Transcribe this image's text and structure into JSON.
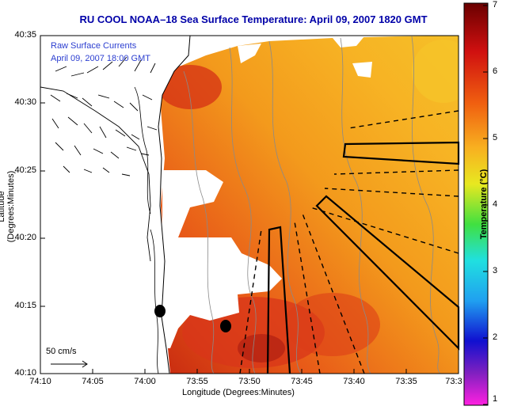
{
  "title": "RU COOL  NOAA–18  Sea Surface Temperature:  April 09, 2007 1820 GMT",
  "legend": {
    "line1": "Raw Surface Currents",
    "line2": "April 09, 2007 18:00 GMT"
  },
  "scale_label": "50 cm/s",
  "chart_data": {
    "type": "heatmap",
    "title": "RU COOL  NOAA–18  Sea Surface Temperature:  April 09, 2007 1820 GMT",
    "xlabel": "Longitude (Degrees:Minutes)",
    "ylabel": "Latitude (Degrees:Minutes)",
    "x_ticks": [
      "74:10",
      "74:05",
      "74:00",
      "73:55",
      "73:50",
      "73:45",
      "73:40",
      "73:35",
      "73:3"
    ],
    "y_ticks": [
      "40:35",
      "40:30",
      "40:25",
      "40:20",
      "40:15",
      "40:10"
    ],
    "colorbar": {
      "label": "Temperature (°C)",
      "ticks": [
        "7",
        "6",
        "5",
        "4",
        "3",
        "2",
        "1"
      ],
      "range": [
        1,
        7
      ]
    }
  },
  "colors": {
    "title": "#0000a8",
    "legend_text": "#2b3ed0",
    "warm": "#e03010",
    "mid": "#f08818",
    "cool": "#f8b822"
  }
}
